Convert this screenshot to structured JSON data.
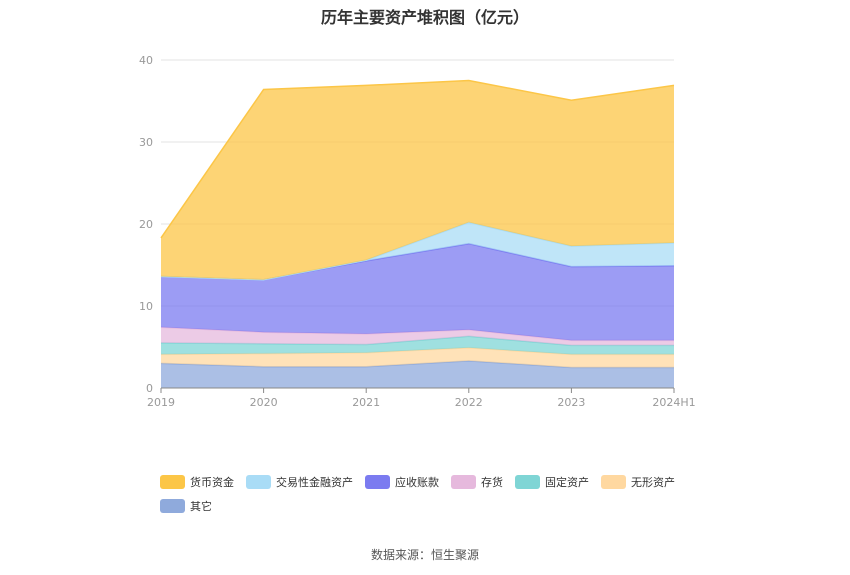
{
  "source_label": "数据来源：恒生聚源",
  "chart_data": {
    "type": "area",
    "stacked": true,
    "title": "历年主要资产堆积图（亿元）",
    "categories": [
      "2019",
      "2020",
      "2021",
      "2022",
      "2023",
      "2024H1"
    ],
    "y_ticks": [
      "0",
      "10",
      "20",
      "30",
      "40"
    ],
    "ylim": [
      0,
      40
    ],
    "grid": true,
    "legend_position": "bottom",
    "series": [
      {
        "name": "其它",
        "color": "#8faadc",
        "values": [
          3.0,
          2.6,
          2.6,
          3.3,
          2.5,
          2.5
        ]
      },
      {
        "name": "无形资产",
        "color": "#ffd8a0",
        "values": [
          1.1,
          1.6,
          1.7,
          1.6,
          1.6,
          1.6
        ]
      },
      {
        "name": "固定资产",
        "color": "#7fd5d5",
        "values": [
          1.4,
          1.2,
          1.0,
          1.4,
          1.1,
          1.1
        ]
      },
      {
        "name": "存货",
        "color": "#e6b9dd",
        "values": [
          1.9,
          1.4,
          1.3,
          0.8,
          0.6,
          0.6
        ]
      },
      {
        "name": "应收账款",
        "color": "#7b7bf0",
        "values": [
          6.2,
          6.4,
          8.9,
          10.5,
          9.0,
          9.1
        ]
      },
      {
        "name": "交易性金融资产",
        "color": "#a9dcf6",
        "values": [
          0.0,
          0.0,
          0.1,
          2.6,
          2.5,
          2.8
        ]
      },
      {
        "name": "货币资金",
        "color": "#fcc647",
        "values": [
          4.7,
          23.2,
          21.3,
          17.3,
          17.8,
          19.2
        ]
      }
    ],
    "legend_order": [
      "货币资金",
      "交易性金融资产",
      "应收账款",
      "存货",
      "固定资产",
      "无形资产",
      "其它"
    ]
  }
}
